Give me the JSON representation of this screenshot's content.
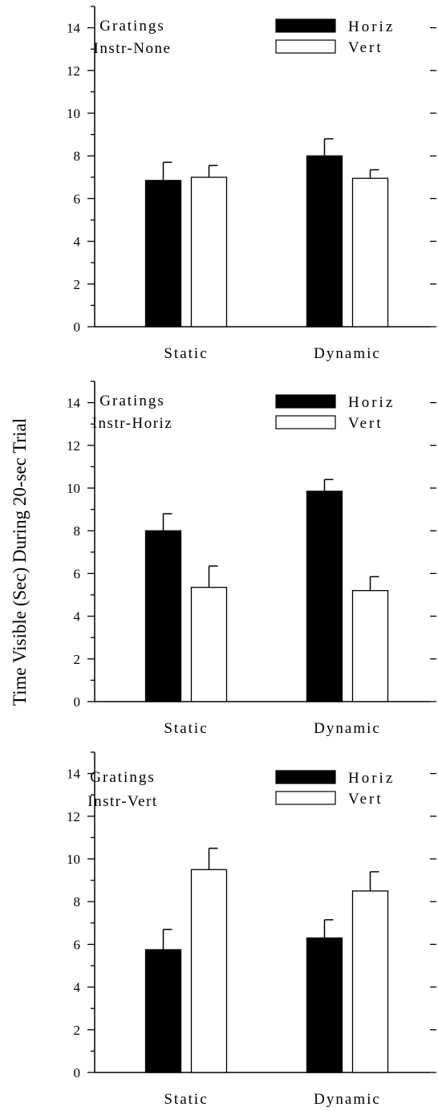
{
  "ylabel": "Time Visible (Sec) During 20-sec Trial",
  "chart_data": [
    {
      "type": "bar",
      "annotation": [
        "Gratings",
        "Instr-None"
      ],
      "categories": [
        "Static",
        "Dynamic"
      ],
      "series": [
        {
          "name": "Horiz",
          "values": [
            6.85,
            8.0
          ],
          "errors": [
            0.85,
            0.8
          ]
        },
        {
          "name": "Vert",
          "values": [
            7.0,
            6.95
          ],
          "errors": [
            0.55,
            0.4
          ]
        }
      ],
      "ylim": [
        0,
        15
      ],
      "yticks": [
        0,
        2,
        4,
        6,
        8,
        10,
        12,
        14
      ],
      "legend": "top-right"
    },
    {
      "type": "bar",
      "annotation": [
        "Gratings",
        "Instr-Horiz"
      ],
      "categories": [
        "Static",
        "Dynamic"
      ],
      "series": [
        {
          "name": "Horiz",
          "values": [
            8.0,
            9.85
          ],
          "errors": [
            0.8,
            0.55
          ]
        },
        {
          "name": "Vert",
          "values": [
            5.35,
            5.2
          ],
          "errors": [
            1.0,
            0.65
          ]
        }
      ],
      "ylim": [
        0,
        15
      ],
      "yticks": [
        0,
        2,
        4,
        6,
        8,
        10,
        12,
        14
      ],
      "legend": "top-right"
    },
    {
      "type": "bar",
      "annotation": [
        "Gratings",
        "Instr-Vert"
      ],
      "categories": [
        "Static",
        "Dynamic"
      ],
      "series": [
        {
          "name": "Horiz",
          "values": [
            5.75,
            6.3
          ],
          "errors": [
            0.95,
            0.85
          ]
        },
        {
          "name": "Vert",
          "values": [
            9.5,
            8.5
          ],
          "errors": [
            1.0,
            0.9
          ]
        }
      ],
      "ylim": [
        0,
        15
      ],
      "yticks": [
        0,
        2,
        4,
        6,
        8,
        10,
        12,
        14
      ],
      "legend": "top-right"
    }
  ],
  "colors": {
    "horiz": "#000000",
    "vert": "#ffffff",
    "axis": "#000000"
  }
}
